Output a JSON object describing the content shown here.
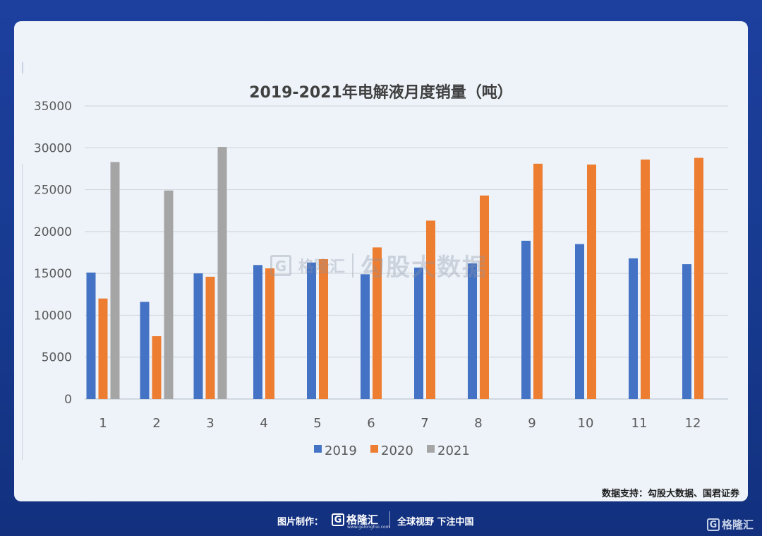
{
  "chart_data": {
    "type": "bar",
    "title": "2019-2021年电解液月度销量（吨）",
    "xlabel": "",
    "ylabel": "",
    "ylim": [
      0,
      35000
    ],
    "yticks": [
      0,
      5000,
      10000,
      15000,
      20000,
      25000,
      30000,
      35000
    ],
    "yticks_labels": [
      "0",
      "5000",
      "10000",
      "15000",
      "20000",
      "25000",
      "30000",
      "35000"
    ],
    "grid": true,
    "legend_position": "bottom",
    "categories": [
      "1",
      "2",
      "3",
      "4",
      "5",
      "6",
      "7",
      "8",
      "9",
      "10",
      "11",
      "12"
    ],
    "series": [
      {
        "name": "2019",
        "color": "#4472c4",
        "values": [
          15100,
          11600,
          15000,
          16000,
          16300,
          14900,
          15700,
          16200,
          18900,
          18500,
          16800,
          16100
        ]
      },
      {
        "name": "2020",
        "color": "#ed7d31",
        "values": [
          12000,
          7500,
          14600,
          15600,
          16700,
          18100,
          21300,
          24300,
          28100,
          28000,
          28600,
          28800
        ]
      },
      {
        "name": "2021",
        "color": "#a5a5a5",
        "values": [
          28300,
          24900,
          30100,
          null,
          null,
          null,
          null,
          null,
          null,
          null,
          null,
          null
        ]
      }
    ]
  },
  "source_text": "数据支持：勾股大数据、国君证券",
  "footer": {
    "label": "图片制作：",
    "brand": "格隆汇",
    "brand_url_small": "www.gelonghui.com",
    "slogan": "全球视野 下注中国"
  },
  "watermark": {
    "brand": "格隆汇",
    "text": "勾股大数据"
  },
  "logo_letter": "G"
}
